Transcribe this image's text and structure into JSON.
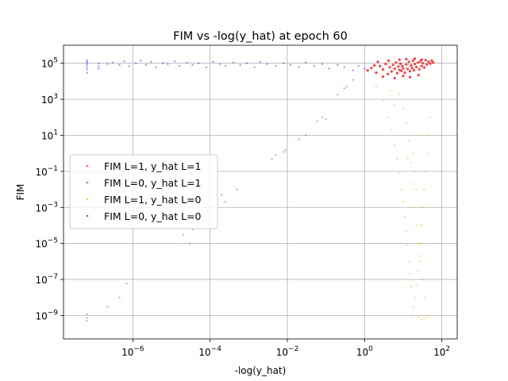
{
  "chart_data": {
    "type": "scatter",
    "title": "FIM vs -log(y_hat) at epoch 60",
    "xlabel": "-log(y_hat)",
    "ylabel": "FIM",
    "xscale": "log",
    "yscale": "log",
    "xlim": [
      1.6e-08,
      250
    ],
    "ylim": [
      5e-11,
      1000000.0
    ],
    "x_ticks": [
      {
        "value": 1e-06,
        "base": "10",
        "exp": "−6"
      },
      {
        "value": 0.0001,
        "base": "10",
        "exp": "−4"
      },
      {
        "value": 0.01,
        "base": "10",
        "exp": "−2"
      },
      {
        "value": 1,
        "base": "10",
        "exp": "0"
      },
      {
        "value": 100,
        "base": "10",
        "exp": "2"
      }
    ],
    "y_ticks": [
      {
        "value": 1e-09,
        "base": "10",
        "exp": "−9"
      },
      {
        "value": 1e-07,
        "base": "10",
        "exp": "−7"
      },
      {
        "value": 1e-05,
        "base": "10",
        "exp": "−5"
      },
      {
        "value": 0.001,
        "base": "10",
        "exp": "−3"
      },
      {
        "value": 0.1,
        "base": "10",
        "exp": "−1"
      },
      {
        "value": 10,
        "base": "10",
        "exp": "1"
      },
      {
        "value": 1000,
        "base": "10",
        "exp": "3"
      },
      {
        "value": 100000,
        "base": "10",
        "exp": "5"
      }
    ],
    "grid": true,
    "legend_position": "center-left",
    "series": [
      {
        "name": "FIM L=1, y_hat L=1",
        "color": "#ff0000",
        "points": [
          [
            1.2,
            40000
          ],
          [
            1.5,
            55000
          ],
          [
            2,
            30000
          ],
          [
            2.5,
            70000
          ],
          [
            3,
            45000
          ],
          [
            3.5,
            90000
          ],
          [
            4,
            25000
          ],
          [
            4.5,
            60000
          ],
          [
            5,
            35000
          ],
          [
            5.5,
            80000
          ],
          [
            6,
            50000
          ],
          [
            6.5,
            110000
          ],
          [
            7,
            28000
          ],
          [
            7.5,
            65000
          ],
          [
            8,
            42000
          ],
          [
            8.5,
            95000
          ],
          [
            9,
            38000
          ],
          [
            9.5,
            70000
          ],
          [
            10,
            52000
          ],
          [
            11,
            30000
          ],
          [
            12,
            85000
          ],
          [
            13,
            48000
          ],
          [
            14,
            120000
          ],
          [
            15,
            36000
          ],
          [
            16,
            75000
          ],
          [
            17,
            55000
          ],
          [
            18,
            140000
          ],
          [
            19,
            41000
          ],
          [
            20,
            90000
          ],
          [
            22,
            62000
          ],
          [
            24,
            110000
          ],
          [
            26,
            46000
          ],
          [
            28,
            130000
          ],
          [
            30,
            70000
          ],
          [
            32,
            100000
          ],
          [
            35,
            58000
          ],
          [
            38,
            150000
          ],
          [
            41,
            85000
          ],
          [
            45,
            120000
          ],
          [
            50,
            95000
          ],
          [
            55,
            140000
          ],
          [
            60,
            110000
          ],
          [
            3,
            18000
          ],
          [
            6,
            15000
          ],
          [
            10,
            20000
          ],
          [
            15,
            17000
          ],
          [
            25,
            22000
          ],
          [
            8,
            160000
          ],
          [
            12,
            170000
          ],
          [
            20,
            180000
          ],
          [
            30,
            160000
          ],
          [
            1.8,
            75000
          ],
          [
            2.2,
            120000
          ],
          [
            4.2,
            140000
          ]
        ]
      },
      {
        "name": "FIM L=0, y_hat L=1",
        "color": "#008000",
        "points": [
          [
            6.5e-08,
            1.2e-09
          ],
          [
            6.5e-08,
            7e-10
          ],
          [
            6.5e-08,
            5e-10
          ],
          [
            2.2e-07,
            3e-09
          ],
          [
            4.5e-07,
            1e-08
          ],
          [
            7e-07,
            6e-08
          ],
          [
            1.4e-05,
            0.00015
          ],
          [
            2e-05,
            3e-05
          ],
          [
            3e-05,
            1e-05
          ],
          [
            3.5e-05,
            6e-05
          ],
          [
            5e-05,
            0.0002
          ],
          [
            9e-05,
            0.0006
          ],
          [
            0.0002,
            0.005
          ],
          [
            0.00025,
            0.002
          ],
          [
            0.0005,
            0.01
          ],
          [
            0.004,
            0.5
          ],
          [
            0.005,
            0.8
          ],
          [
            0.008,
            1.2
          ],
          [
            0.009,
            1.5
          ],
          [
            0.02,
            6
          ],
          [
            0.03,
            10
          ],
          [
            0.06,
            60
          ],
          [
            0.08,
            100
          ],
          [
            0.1,
            80
          ],
          [
            0.2,
            1800
          ],
          [
            0.3,
            4000
          ],
          [
            0.35,
            5000
          ],
          [
            0.5,
            12000
          ]
        ]
      },
      {
        "name": "FIM L=1, y_hat L=0",
        "color": "#ffa500",
        "points": [
          [
            2,
            5000
          ],
          [
            3,
            800
          ],
          [
            4,
            100
          ],
          [
            5,
            20
          ],
          [
            6,
            3
          ],
          [
            7,
            0.5
          ],
          [
            8,
            0.08
          ],
          [
            9,
            0.01
          ],
          [
            10,
            0.002
          ],
          [
            11,
            0.0003
          ],
          [
            12,
            5e-05
          ],
          [
            13,
            8e-06
          ],
          [
            14,
            1e-06
          ],
          [
            15,
            2e-07
          ],
          [
            16,
            4e-08
          ],
          [
            17,
            1e-09
          ],
          [
            18,
            3e-09
          ],
          [
            20,
            1e-08
          ],
          [
            22,
            5e-08
          ],
          [
            24,
            3e-07
          ],
          [
            26,
            2e-06
          ],
          [
            28,
            1e-05
          ],
          [
            30,
            0.0001
          ],
          [
            32,
            0.001
          ],
          [
            35,
            0.01
          ],
          [
            38,
            0.1
          ],
          [
            42,
            1
          ],
          [
            46,
            10
          ],
          [
            50,
            100
          ],
          [
            4.5,
            3000
          ],
          [
            6,
            500
          ],
          [
            8,
            2000
          ],
          [
            10,
            300
          ],
          [
            12,
            50
          ],
          [
            14,
            5
          ],
          [
            16,
            0.3
          ],
          [
            18,
            0.02
          ],
          [
            20,
            0.001
          ],
          [
            22,
            0.0001
          ],
          [
            25,
            1e-05
          ],
          [
            28,
            1e-06
          ],
          [
            32,
            1e-07
          ],
          [
            36,
            1e-08
          ],
          [
            40,
            1e-09
          ],
          [
            25,
            8e-10
          ],
          [
            30,
            6e-10
          ],
          [
            35,
            7e-10
          ],
          [
            45,
            9e-10
          ],
          [
            15,
            0.001
          ],
          [
            20,
            0.1
          ],
          [
            25,
            10
          ],
          [
            18,
            1
          ],
          [
            22,
            0.01
          ],
          [
            28,
            0.001
          ],
          [
            13,
            0.5
          ]
        ]
      },
      {
        "name": "FIM L=0, y_hat L=0",
        "color": "#0000ff",
        "points": [
          [
            6.5e-08,
            150000
          ],
          [
            6.5e-08,
            120000
          ],
          [
            6.5e-08,
            100000
          ],
          [
            6.5e-08,
            80000
          ],
          [
            6.5e-08,
            60000
          ],
          [
            6.5e-08,
            45000
          ],
          [
            6.5e-08,
            30000
          ],
          [
            1.3e-07,
            100000
          ],
          [
            1.3e-07,
            70000
          ],
          [
            1.3e-07,
            50000
          ],
          [
            2.2e-07,
            90000
          ],
          [
            3e-07,
            110000
          ],
          [
            4.5e-07,
            80000
          ],
          [
            6e-07,
            130000
          ],
          [
            8e-07,
            70000
          ],
          [
            1.2e-06,
            100000
          ],
          [
            1.6e-06,
            140000
          ],
          [
            2.2e-06,
            80000
          ],
          [
            3e-06,
            120000
          ],
          [
            4e-06,
            60000
          ],
          [
            6e-06,
            100000
          ],
          [
            8e-06,
            90000
          ],
          [
            1.2e-05,
            130000
          ],
          [
            1.6e-05,
            70000
          ],
          [
            2.5e-05,
            110000
          ],
          [
            3.5e-05,
            80000
          ],
          [
            5e-05,
            100000
          ],
          [
            8e-05,
            60000
          ],
          [
            0.00012,
            120000
          ],
          [
            0.00018,
            90000
          ],
          [
            0.00025,
            70000
          ],
          [
            0.0004,
            110000
          ],
          [
            0.0006,
            80000
          ],
          [
            0.0009,
            100000
          ],
          [
            0.0014,
            60000
          ],
          [
            0.002,
            120000
          ],
          [
            0.003,
            90000
          ],
          [
            0.005,
            70000
          ],
          [
            0.008,
            100000
          ],
          [
            0.012,
            80000
          ],
          [
            0.02,
            60000
          ],
          [
            0.03,
            110000
          ],
          [
            0.05,
            70000
          ],
          [
            0.08,
            90000
          ],
          [
            0.12,
            50000
          ],
          [
            0.2,
            80000
          ],
          [
            0.3,
            60000
          ],
          [
            0.5,
            40000
          ],
          [
            0.7,
            70000
          ],
          [
            1,
            50000
          ]
        ]
      }
    ]
  }
}
